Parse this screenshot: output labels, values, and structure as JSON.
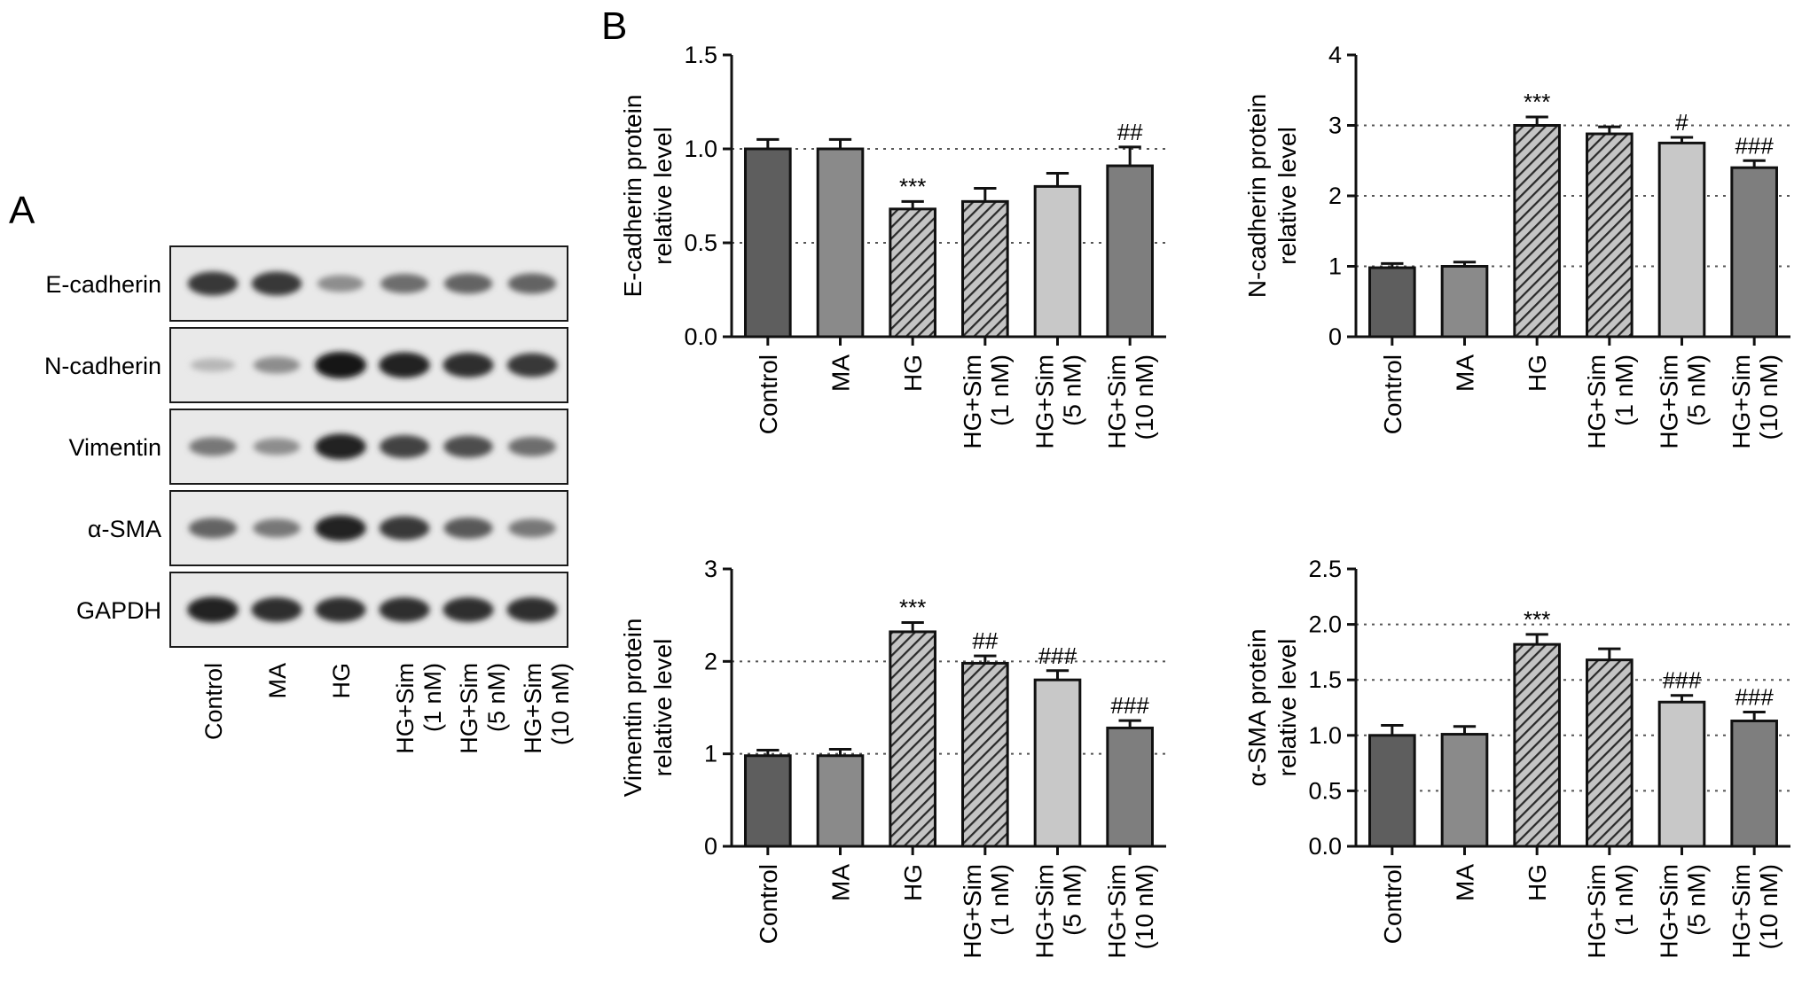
{
  "panels": {
    "a_label": "A",
    "b_label": "B"
  },
  "blot": {
    "rows": [
      "E-cadherin",
      "N-cadherin",
      "Vimentin",
      "α-SMA",
      "GAPDH"
    ],
    "lanes": [
      [
        "Control"
      ],
      [
        "MA"
      ],
      [
        "HG"
      ],
      [
        "HG+Sim",
        "(1 nM)"
      ],
      [
        "HG+Sim",
        "(5 nM)"
      ],
      [
        "HG+Sim",
        "(10 nM)"
      ]
    ],
    "band_intensity": [
      [
        0.85,
        0.85,
        0.45,
        0.6,
        0.65,
        0.65
      ],
      [
        0.25,
        0.45,
        1.0,
        0.95,
        0.9,
        0.85
      ],
      [
        0.55,
        0.45,
        0.95,
        0.8,
        0.75,
        0.6
      ],
      [
        0.65,
        0.55,
        0.95,
        0.85,
        0.7,
        0.55
      ],
      [
        0.95,
        0.9,
        0.9,
        0.9,
        0.9,
        0.9
      ]
    ]
  },
  "chart_data": [
    {
      "type": "bar",
      "ylabel": [
        "E-cadherin protein",
        "relative level"
      ],
      "categories": [
        [
          "Control"
        ],
        [
          "MA"
        ],
        [
          "HG"
        ],
        [
          "HG+Sim",
          "(1 nM)"
        ],
        [
          "HG+Sim",
          "(5 nM)"
        ],
        [
          "HG+Sim",
          "(10 nM)"
        ]
      ],
      "values": [
        1.0,
        1.0,
        0.68,
        0.72,
        0.8,
        0.91
      ],
      "errors": [
        0.05,
        0.05,
        0.04,
        0.07,
        0.07,
        0.1
      ],
      "significance": [
        "",
        "",
        "***",
        "",
        "",
        "##"
      ],
      "ylim": [
        0,
        1.5
      ],
      "yticks": [
        "0.0",
        "0.5",
        "1.0",
        "1.5"
      ],
      "gridlines": [
        0.5,
        1.0
      ]
    },
    {
      "type": "bar",
      "ylabel": [
        "N-cadherin protein",
        "relative level"
      ],
      "categories": [
        [
          "Control"
        ],
        [
          "MA"
        ],
        [
          "HG"
        ],
        [
          "HG+Sim",
          "(1 nM)"
        ],
        [
          "HG+Sim",
          "(5 nM)"
        ],
        [
          "HG+Sim",
          "(10 nM)"
        ]
      ],
      "values": [
        0.98,
        1.0,
        3.0,
        2.88,
        2.75,
        2.4
      ],
      "errors": [
        0.06,
        0.06,
        0.12,
        0.1,
        0.08,
        0.1
      ],
      "significance": [
        "",
        "",
        "***",
        "",
        "#",
        "###"
      ],
      "ylim": [
        0,
        4
      ],
      "yticks": [
        "0",
        "1",
        "2",
        "3",
        "4"
      ],
      "gridlines": [
        1,
        2,
        3
      ]
    },
    {
      "type": "bar",
      "ylabel": [
        "Vimentin protein",
        "relative level"
      ],
      "categories": [
        [
          "Control"
        ],
        [
          "MA"
        ],
        [
          "HG"
        ],
        [
          "HG+Sim",
          "(1 nM)"
        ],
        [
          "HG+Sim",
          "(5 nM)"
        ],
        [
          "HG+Sim",
          "(10 nM)"
        ]
      ],
      "values": [
        0.98,
        0.98,
        2.32,
        1.98,
        1.8,
        1.28
      ],
      "errors": [
        0.06,
        0.07,
        0.1,
        0.08,
        0.1,
        0.08
      ],
      "significance": [
        "",
        "",
        "***",
        "##",
        "###",
        "###"
      ],
      "ylim": [
        0,
        3
      ],
      "yticks": [
        "0",
        "1",
        "2",
        "3"
      ],
      "gridlines": [
        1,
        2
      ]
    },
    {
      "type": "bar",
      "ylabel": [
        "α-SMA protein",
        "relative level"
      ],
      "categories": [
        [
          "Control"
        ],
        [
          "MA"
        ],
        [
          "HG"
        ],
        [
          "HG+Sim",
          "(1 nM)"
        ],
        [
          "HG+Sim",
          "(5 nM)"
        ],
        [
          "HG+Sim",
          "(10 nM)"
        ]
      ],
      "values": [
        1.0,
        1.01,
        1.82,
        1.68,
        1.3,
        1.13
      ],
      "errors": [
        0.09,
        0.07,
        0.09,
        0.1,
        0.06,
        0.08
      ],
      "significance": [
        "",
        "",
        "***",
        "",
        "###",
        "###"
      ],
      "ylim": [
        0,
        2.5
      ],
      "yticks": [
        "0.0",
        "0.5",
        "1.0",
        "1.5",
        "2.0",
        "2.5"
      ],
      "gridlines": [
        0.5,
        1.0,
        1.5,
        2.0
      ]
    }
  ],
  "colors": {
    "bars": [
      "#5e5e5e",
      "#8a8a8a",
      "#4a4a4a",
      "#7a7a7a",
      "#c8c8c8",
      "#7e7e7e"
    ],
    "hatched": [
      false,
      false,
      true,
      true,
      false,
      false
    ]
  }
}
